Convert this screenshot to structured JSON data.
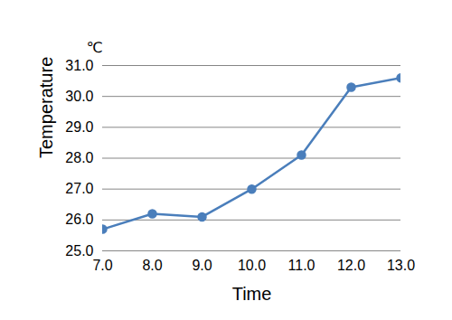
{
  "chart_data": {
    "type": "line",
    "x_label": "Time",
    "y_label": "Temperature",
    "annotations": [
      "℃"
    ],
    "x": [
      7,
      8,
      9,
      10,
      11,
      12,
      13
    ],
    "values": [
      25.7,
      26.2,
      26.1,
      27.0,
      28.1,
      30.3,
      30.6
    ],
    "color": "#4a7ebb",
    "marker": "circle",
    "xlim": [
      7,
      13
    ],
    "xticks": [
      7,
      8,
      9,
      10,
      11,
      12,
      13
    ],
    "ylim": [
      25,
      31
    ],
    "yticks": [
      25,
      26,
      27,
      28,
      29,
      30,
      31
    ],
    "grid": true
  }
}
